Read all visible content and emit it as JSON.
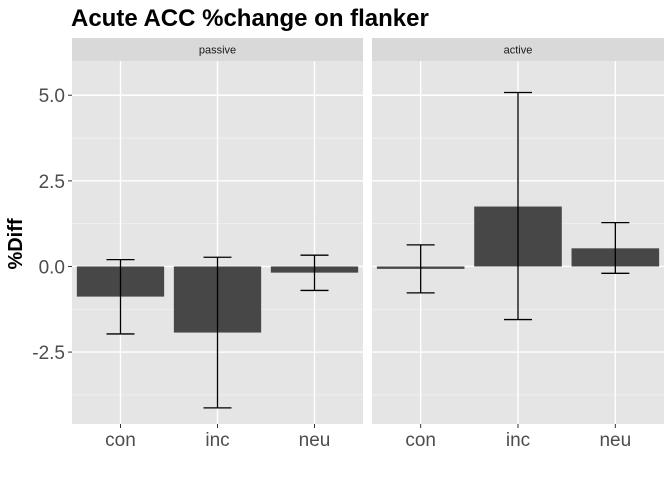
{
  "chart_data": {
    "type": "bar",
    "title": "Acute ACC %change on flanker",
    "xlabel": "",
    "ylabel": "%Diff",
    "categories": [
      "con",
      "inc",
      "neu"
    ],
    "ylim": [
      -4.6,
      6.0
    ],
    "yticks": [
      -2.5,
      0.0,
      2.5,
      5.0
    ],
    "ytick_labels": [
      "-2.5",
      "0.0",
      "2.5",
      "5.0"
    ],
    "grid": true,
    "bar_color": "#474747",
    "panel_background": "#e5e5e5",
    "strip_background": "#d9d9d9",
    "facets": [
      {
        "label": "passive",
        "values": [
          -0.88,
          -1.93,
          -0.18
        ],
        "err_low": [
          -1.97,
          -4.13,
          -0.7
        ],
        "err_high": [
          0.2,
          0.27,
          0.33
        ]
      },
      {
        "label": "active",
        "values": [
          -0.07,
          1.75,
          0.53
        ],
        "err_low": [
          -0.77,
          -1.55,
          -0.2
        ],
        "err_high": [
          0.63,
          5.08,
          1.28
        ]
      }
    ]
  }
}
